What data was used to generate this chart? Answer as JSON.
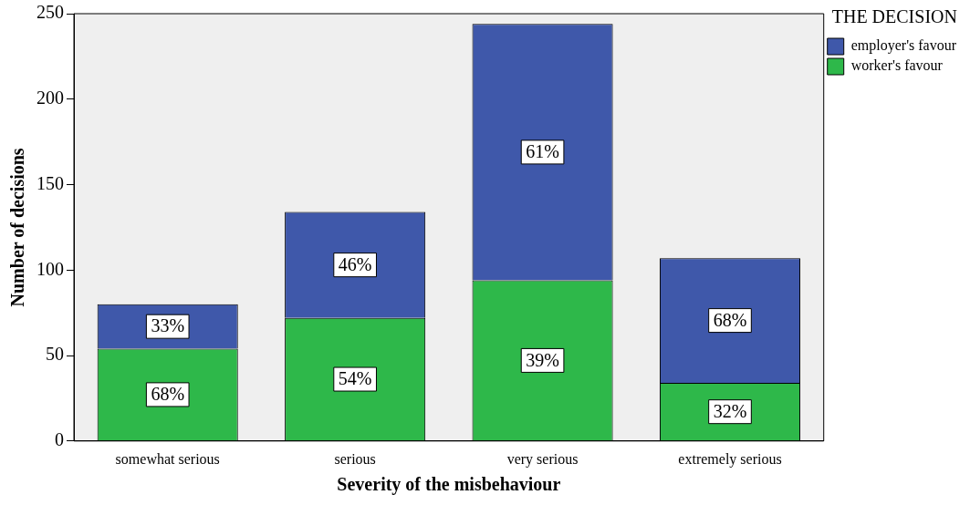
{
  "chart_data": {
    "type": "bar",
    "stacked": true,
    "xlabel": "Severity of the misbehaviour",
    "ylabel": "Number of decisions",
    "legend_title": "THE DECISION",
    "legend": "top right",
    "categories": [
      "somewhat serious",
      "serious",
      "very serious",
      "extremely serious"
    ],
    "series": [
      {
        "name": "worker's favour",
        "color": "#2eb84a",
        "values": [
          54,
          72,
          94,
          34
        ]
      },
      {
        "name": "employer's favour",
        "color": "#3f58aa",
        "values": [
          26,
          62,
          150,
          73
        ]
      }
    ],
    "annotations": [
      "68%",
      "54%",
      "39%",
      "32%",
      "33%",
      "46%",
      "61%",
      "68%"
    ],
    "ylim": [
      0,
      250
    ],
    "yticks": [
      0,
      50,
      100,
      150,
      200,
      250
    ],
    "grid": false
  }
}
